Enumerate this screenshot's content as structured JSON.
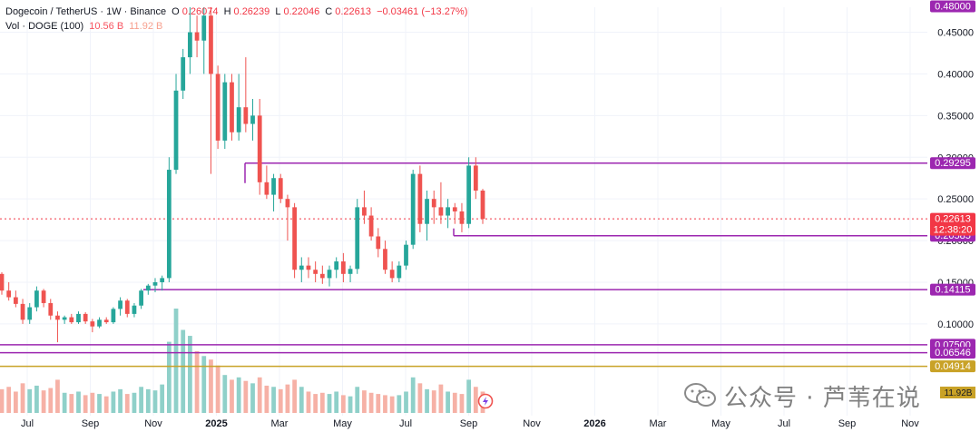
{
  "header": {
    "symbol": "Dogecoin / TetherUS · 1W · Binance",
    "open_label": "O",
    "open_value": "0.26074",
    "high_label": "H",
    "high_value": "0.26239",
    "low_label": "L",
    "low_value": "0.22046",
    "close_label": "C",
    "close_value": "0.22613",
    "change": "−0.03461 (−13.27%)",
    "vol_label": "Vol · DOGE (100)",
    "vol_value1": "10.56 B",
    "vol_value2": "11.92 B"
  },
  "colors": {
    "up": "#26a69a",
    "down": "#ef5350",
    "vol_up": "#8fd0c9",
    "vol_down": "#f6b1a6",
    "line": "#9c27b0",
    "gold": "#c9a227",
    "price_tag": "#f23645"
  },
  "watermark_text": "公众号 · 芦苇在说",
  "chart_data": {
    "type": "candlestick",
    "title": "Dogecoin / TetherUS · 1W · Binance",
    "ylim": [
      0.04,
      0.48
    ],
    "yticks": [
      "0.45000",
      "0.40000",
      "0.35000",
      "0.30000",
      "0.25000",
      "0.20000",
      "0.15000",
      "0.10000"
    ],
    "xticks": [
      {
        "label": "Jul",
        "bold": false
      },
      {
        "label": "Sep",
        "bold": false
      },
      {
        "label": "Nov",
        "bold": false
      },
      {
        "label": "2025",
        "bold": true
      },
      {
        "label": "Mar",
        "bold": false
      },
      {
        "label": "May",
        "bold": false
      },
      {
        "label": "Jul",
        "bold": false
      },
      {
        "label": "Sep",
        "bold": false
      },
      {
        "label": "Nov",
        "bold": false
      },
      {
        "label": "2026",
        "bold": true
      },
      {
        "label": "Mar",
        "bold": false
      },
      {
        "label": "May",
        "bold": false
      },
      {
        "label": "Jul",
        "bold": false
      },
      {
        "label": "Sep",
        "bold": false
      },
      {
        "label": "Nov",
        "bold": false
      }
    ],
    "current_price": "0.22613",
    "countdown": "12:38:20",
    "axis_top_label": "0.48000",
    "volume_label": "11.92B",
    "levels": [
      {
        "value": 0.29295,
        "label": "0.29295",
        "color": "#9c27b0"
      },
      {
        "value": 0.20585,
        "label": "0.20585",
        "color": "#9c27b0"
      },
      {
        "value": 0.14115,
        "label": "0.14115",
        "color": "#9c27b0"
      },
      {
        "value": 0.075,
        "label": "0.07500",
        "color": "#9c27b0"
      },
      {
        "value": 0.06546,
        "label": "0.06546",
        "color": "#9c27b0"
      },
      {
        "value": 0.04914,
        "label": "0.04914",
        "color": "#c9a227"
      }
    ],
    "candles": [
      [
        0.16,
        0.162,
        0.135,
        0.14,
        20
      ],
      [
        0.14,
        0.15,
        0.128,
        0.132,
        22
      ],
      [
        0.132,
        0.14,
        0.12,
        0.124,
        18
      ],
      [
        0.124,
        0.13,
        0.1,
        0.105,
        25
      ],
      [
        0.105,
        0.125,
        0.1,
        0.12,
        20
      ],
      [
        0.12,
        0.145,
        0.115,
        0.14,
        23
      ],
      [
        0.14,
        0.142,
        0.12,
        0.125,
        19
      ],
      [
        0.125,
        0.13,
        0.105,
        0.11,
        21
      ],
      [
        0.11,
        0.115,
        0.078,
        0.105,
        28
      ],
      [
        0.105,
        0.11,
        0.1,
        0.108,
        17
      ],
      [
        0.108,
        0.112,
        0.1,
        0.102,
        16
      ],
      [
        0.102,
        0.115,
        0.1,
        0.112,
        18
      ],
      [
        0.112,
        0.114,
        0.1,
        0.103,
        15
      ],
      [
        0.103,
        0.106,
        0.09,
        0.097,
        17
      ],
      [
        0.097,
        0.108,
        0.095,
        0.105,
        16
      ],
      [
        0.105,
        0.108,
        0.1,
        0.102,
        14
      ],
      [
        0.102,
        0.12,
        0.1,
        0.118,
        18
      ],
      [
        0.118,
        0.132,
        0.11,
        0.128,
        20
      ],
      [
        0.128,
        0.13,
        0.108,
        0.112,
        16
      ],
      [
        0.112,
        0.125,
        0.108,
        0.122,
        17
      ],
      [
        0.122,
        0.142,
        0.118,
        0.14,
        22
      ],
      [
        0.14,
        0.148,
        0.135,
        0.146,
        20
      ],
      [
        0.146,
        0.155,
        0.138,
        0.15,
        19
      ],
      [
        0.15,
        0.158,
        0.14,
        0.155,
        24
      ],
      [
        0.155,
        0.3,
        0.15,
        0.285,
        60
      ],
      [
        0.285,
        0.4,
        0.28,
        0.38,
        88
      ],
      [
        0.38,
        0.43,
        0.37,
        0.42,
        70
      ],
      [
        0.42,
        0.48,
        0.4,
        0.45,
        65
      ],
      [
        0.45,
        0.47,
        0.42,
        0.44,
        52
      ],
      [
        0.44,
        0.48,
        0.4,
        0.47,
        48
      ],
      [
        0.47,
        0.48,
        0.28,
        0.4,
        45
      ],
      [
        0.4,
        0.41,
        0.31,
        0.32,
        40
      ],
      [
        0.32,
        0.4,
        0.31,
        0.39,
        32
      ],
      [
        0.39,
        0.4,
        0.32,
        0.33,
        28
      ],
      [
        0.33,
        0.4,
        0.32,
        0.36,
        30
      ],
      [
        0.36,
        0.42,
        0.33,
        0.34,
        27
      ],
      [
        0.34,
        0.37,
        0.32,
        0.35,
        25
      ],
      [
        0.35,
        0.37,
        0.255,
        0.27,
        30
      ],
      [
        0.27,
        0.29,
        0.25,
        0.255,
        23
      ],
      [
        0.255,
        0.28,
        0.235,
        0.275,
        22
      ],
      [
        0.275,
        0.28,
        0.245,
        0.25,
        20
      ],
      [
        0.25,
        0.255,
        0.2,
        0.24,
        24
      ],
      [
        0.24,
        0.245,
        0.155,
        0.165,
        28
      ],
      [
        0.165,
        0.18,
        0.15,
        0.17,
        22
      ],
      [
        0.17,
        0.18,
        0.155,
        0.165,
        18
      ],
      [
        0.165,
        0.175,
        0.15,
        0.16,
        16
      ],
      [
        0.16,
        0.17,
        0.148,
        0.155,
        17
      ],
      [
        0.155,
        0.17,
        0.145,
        0.165,
        16
      ],
      [
        0.165,
        0.18,
        0.155,
        0.175,
        18
      ],
      [
        0.175,
        0.185,
        0.15,
        0.16,
        15
      ],
      [
        0.16,
        0.17,
        0.15,
        0.166,
        14
      ],
      [
        0.166,
        0.25,
        0.16,
        0.24,
        22
      ],
      [
        0.24,
        0.26,
        0.22,
        0.23,
        19
      ],
      [
        0.23,
        0.24,
        0.2,
        0.205,
        17
      ],
      [
        0.205,
        0.215,
        0.18,
        0.19,
        16
      ],
      [
        0.19,
        0.2,
        0.16,
        0.165,
        15
      ],
      [
        0.165,
        0.175,
        0.15,
        0.155,
        14
      ],
      [
        0.155,
        0.175,
        0.15,
        0.17,
        15
      ],
      [
        0.17,
        0.2,
        0.165,
        0.195,
        18
      ],
      [
        0.195,
        0.285,
        0.19,
        0.28,
        30
      ],
      [
        0.28,
        0.29,
        0.21,
        0.22,
        25
      ],
      [
        0.22,
        0.26,
        0.2,
        0.25,
        20
      ],
      [
        0.25,
        0.26,
        0.22,
        0.24,
        19
      ],
      [
        0.24,
        0.27,
        0.22,
        0.23,
        24
      ],
      [
        0.23,
        0.25,
        0.215,
        0.24,
        18
      ],
      [
        0.24,
        0.245,
        0.22,
        0.235,
        17
      ],
      [
        0.235,
        0.245,
        0.21,
        0.22,
        16
      ],
      [
        0.22,
        0.3,
        0.215,
        0.29,
        28
      ],
      [
        0.29,
        0.3,
        0.25,
        0.26,
        22
      ],
      [
        0.26,
        0.262,
        0.22,
        0.226,
        18
      ]
    ]
  }
}
